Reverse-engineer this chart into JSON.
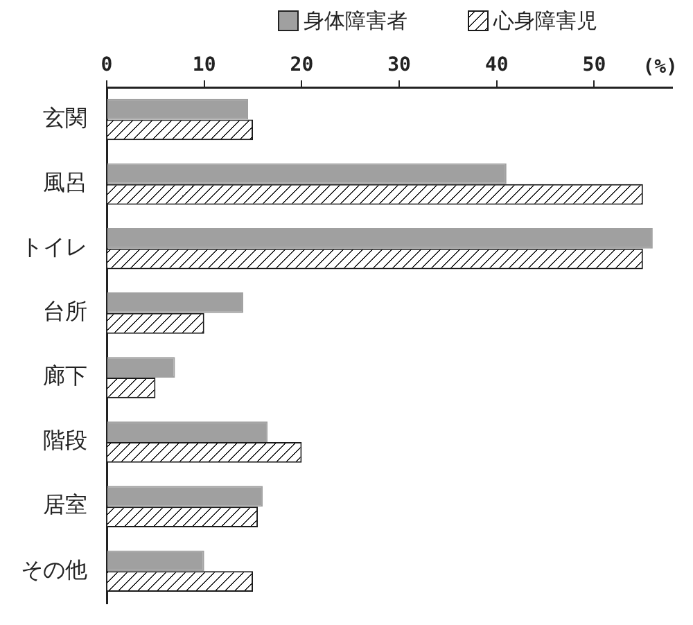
{
  "chart_data": {
    "type": "bar",
    "orientation": "horizontal",
    "categories": [
      "玄関",
      "風呂",
      "トイレ",
      "台所",
      "廊下",
      "階段",
      "居室",
      "その他"
    ],
    "series": [
      {
        "name": "身体障害者",
        "color": "#a0a0a0",
        "values": [
          14.5,
          41,
          56,
          14,
          7,
          16.5,
          16,
          10
        ]
      },
      {
        "name": "心身障害児",
        "color": "#1a1a1a",
        "values": [
          15,
          55,
          55,
          10,
          5,
          20,
          15.5,
          15
        ]
      }
    ],
    "xlabel": "(%)",
    "xlim": [
      0,
      58
    ],
    "xticks": [
      0,
      10,
      20,
      30,
      40,
      50
    ],
    "legend": "top",
    "grid": false
  }
}
